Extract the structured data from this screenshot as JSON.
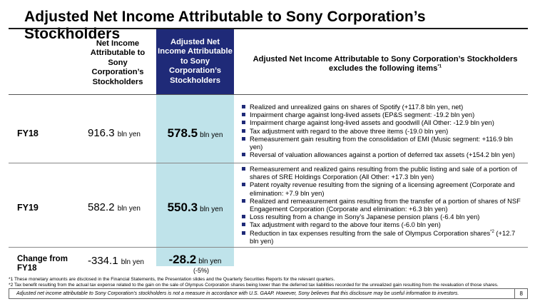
{
  "title": "Adjusted Net Income Attributable to Sony Corporation’s Stockholders",
  "headers": {
    "col1": [
      "Net Income",
      "Attributable to",
      "Sony",
      "Corporation’s",
      "Stockholders"
    ],
    "col2": [
      "Adjusted Net",
      "Income Attributable",
      "to Sony",
      "Corporation’s",
      "Stockholders"
    ],
    "col3_line1": "Adjusted Net Income Attributable to Sony Corporation’s Stockholders",
    "col3_line2": "excludes the following items",
    "col3_sup": "*1"
  },
  "unit": "bln yen",
  "rows": {
    "fy18": {
      "label": "FY18",
      "net_income": "916.3",
      "adjusted": "578.5",
      "items": [
        "Realized and unrealized gains on shares of Spotify (+117.8 bln yen, net)",
        "Impairment charge against long-lived assets (EP&S segment: -19.2 bln yen)",
        "Impairment charge against long-lived assets and goodwill (All Other: -12.9 bln yen)",
        "Tax adjustment with regard to the above three items (-19.0 bln yen)",
        "Remeasurement gain resulting from the consolidation of EMI (Music segment: +116.9 bln yen)",
        "Reversal of valuation allowances against a portion of deferred tax assets (+154.2 bln yen)"
      ]
    },
    "fy19": {
      "label": "FY19",
      "net_income": "582.2",
      "adjusted": "550.3",
      "items": [
        "Remeasurement and realized gains resulting from the public listing and sale of a portion of shares of SRE Holdings Corporation (All Other: +17.3 bln yen)",
        "Patent royalty revenue resulting from the signing of a licensing agreement (Corporate and elimination: +7.9 bln yen)",
        "Realized and remeasurement gains resulting from the transfer of a portion of shares of NSF Engagement Corporation (Corporate and elimination: +6.3 bln yen)",
        "Loss resulting from a change in Sony’s Japanese pension plans (-6.4 bln yen)",
        "Tax adjustment with regard to the above four items (-6.0 bln yen)"
      ],
      "last_item_pre": "Reduction in tax expenses resulting from the sale of Olympus Corporation shares",
      "last_item_sup": "*2",
      "last_item_post": " (+12.7 bln yen)"
    },
    "change": {
      "label_line1": "Change from",
      "label_line2": "FY18",
      "net_income": "-334.1",
      "adjusted": "-28.2",
      "pct": "(-5%)"
    }
  },
  "footnotes": [
    "*1 These monetary amounts are disclosed in the Financial Statements, the Presentation slides and the Quarterly Securities Reports for the relevant quarters.",
    "*2 Tax benefit resulting from the actual tax expense related to the gain on the sale of Olympus Corporation shares being lower than the deferred tax liabilities recorded for the unrealized gain resulting from the revaluation of those shares."
  ],
  "footer_note": "Adjusted net income attributable to Sony Corporation’s stockholders is not a measure in accordance with U.S. GAAP.  However, Sony believes that this disclosure may be useful information to investors.",
  "page_number": "8",
  "colors": {
    "header_navy": "#1f2a78",
    "highlight_teal": "#bfe3ea",
    "bullet": "#1f2a78"
  }
}
